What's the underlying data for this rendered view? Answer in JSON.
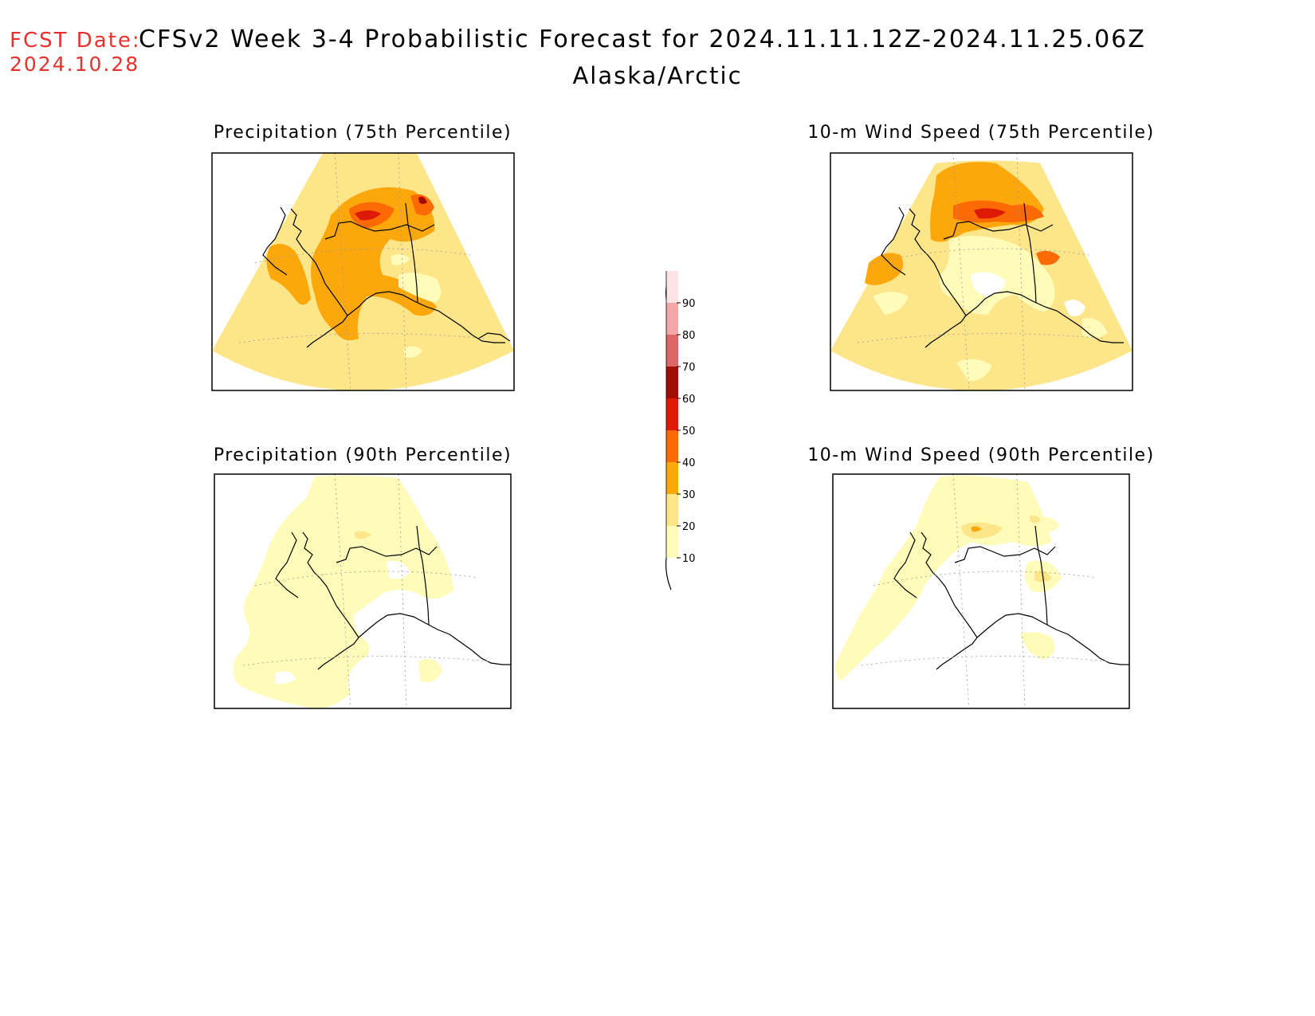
{
  "header": {
    "fcst_label": "FCST Date:",
    "fcst_date": "2024.10.28",
    "title": "CFSv2 Week 3-4 Probabilistic Forecast for 2024.11.11.12Z-2024.11.25.06Z",
    "region": "Alaska/Arctic"
  },
  "panels": [
    {
      "id": "precip-75",
      "title": "Precipitation (75th Percentile)"
    },
    {
      "id": "wind-75",
      "title": "10-m Wind Speed (75th Percentile)"
    },
    {
      "id": "precip-90",
      "title": "Precipitation (90th Percentile)"
    },
    {
      "id": "wind-90",
      "title": "10-m Wind Speed (90th Percentile)"
    }
  ],
  "colorbar": {
    "levels": [
      "10",
      "20",
      "30",
      "40",
      "50",
      "60",
      "70",
      "80",
      "90"
    ],
    "colors": [
      "#fffbb8",
      "#fde58a",
      "#fca80d",
      "#fc6a05",
      "#dc1a05",
      "#a30b05",
      "#dd6565",
      "#f2a8a8",
      "#fde3e3"
    ]
  }
}
